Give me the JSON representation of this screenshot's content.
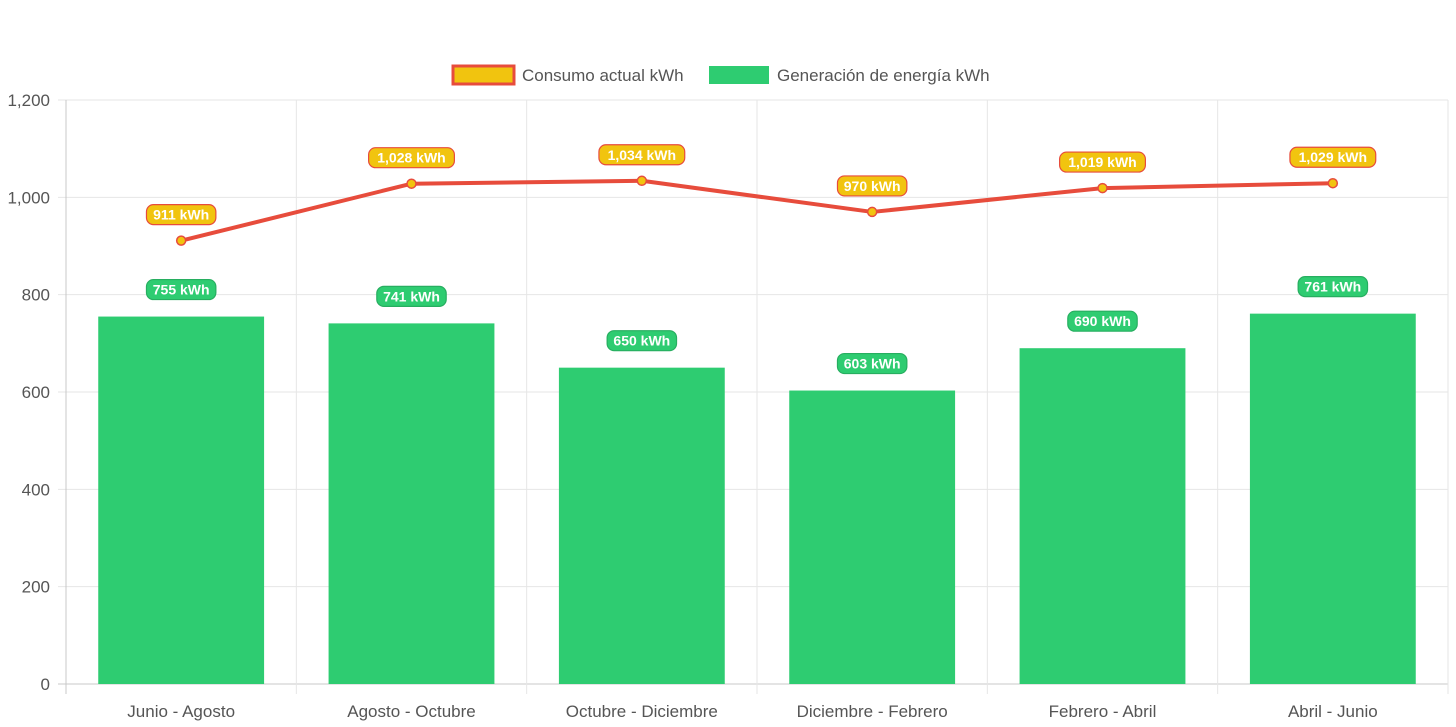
{
  "chart_data": {
    "type": "bar",
    "categories": [
      "Junio - Agosto",
      "Agosto - Octubre",
      "Octubre - Diciembre",
      "Diciembre - Febrero",
      "Febrero - Abril",
      "Abril - Junio"
    ],
    "series": [
      {
        "name": "Consumo actual kWh",
        "type": "line",
        "values": [
          911,
          1028,
          1034,
          970,
          1019,
          1029
        ],
        "data_labels": [
          "911 kWh",
          "1,028 kWh",
          "1,034 kWh",
          "970 kWh",
          "1,019 kWh",
          "1,029 kWh"
        ],
        "color": "#e74c3c",
        "fill_color": "#f1c40f"
      },
      {
        "name": "Generación de energía kWh",
        "type": "bar",
        "values": [
          755,
          741,
          650,
          603,
          690,
          761
        ],
        "data_labels": [
          "755 kWh",
          "741 kWh",
          "650 kWh",
          "603 kWh",
          "690 kWh",
          "761 kWh"
        ],
        "color": "#2ecc71"
      }
    ],
    "y_ticks": [
      "0",
      "200",
      "400",
      "600",
      "800",
      "1,000",
      "1,200"
    ],
    "ylim": [
      0,
      1200
    ],
    "grid": true,
    "legend_position": "top-center"
  }
}
